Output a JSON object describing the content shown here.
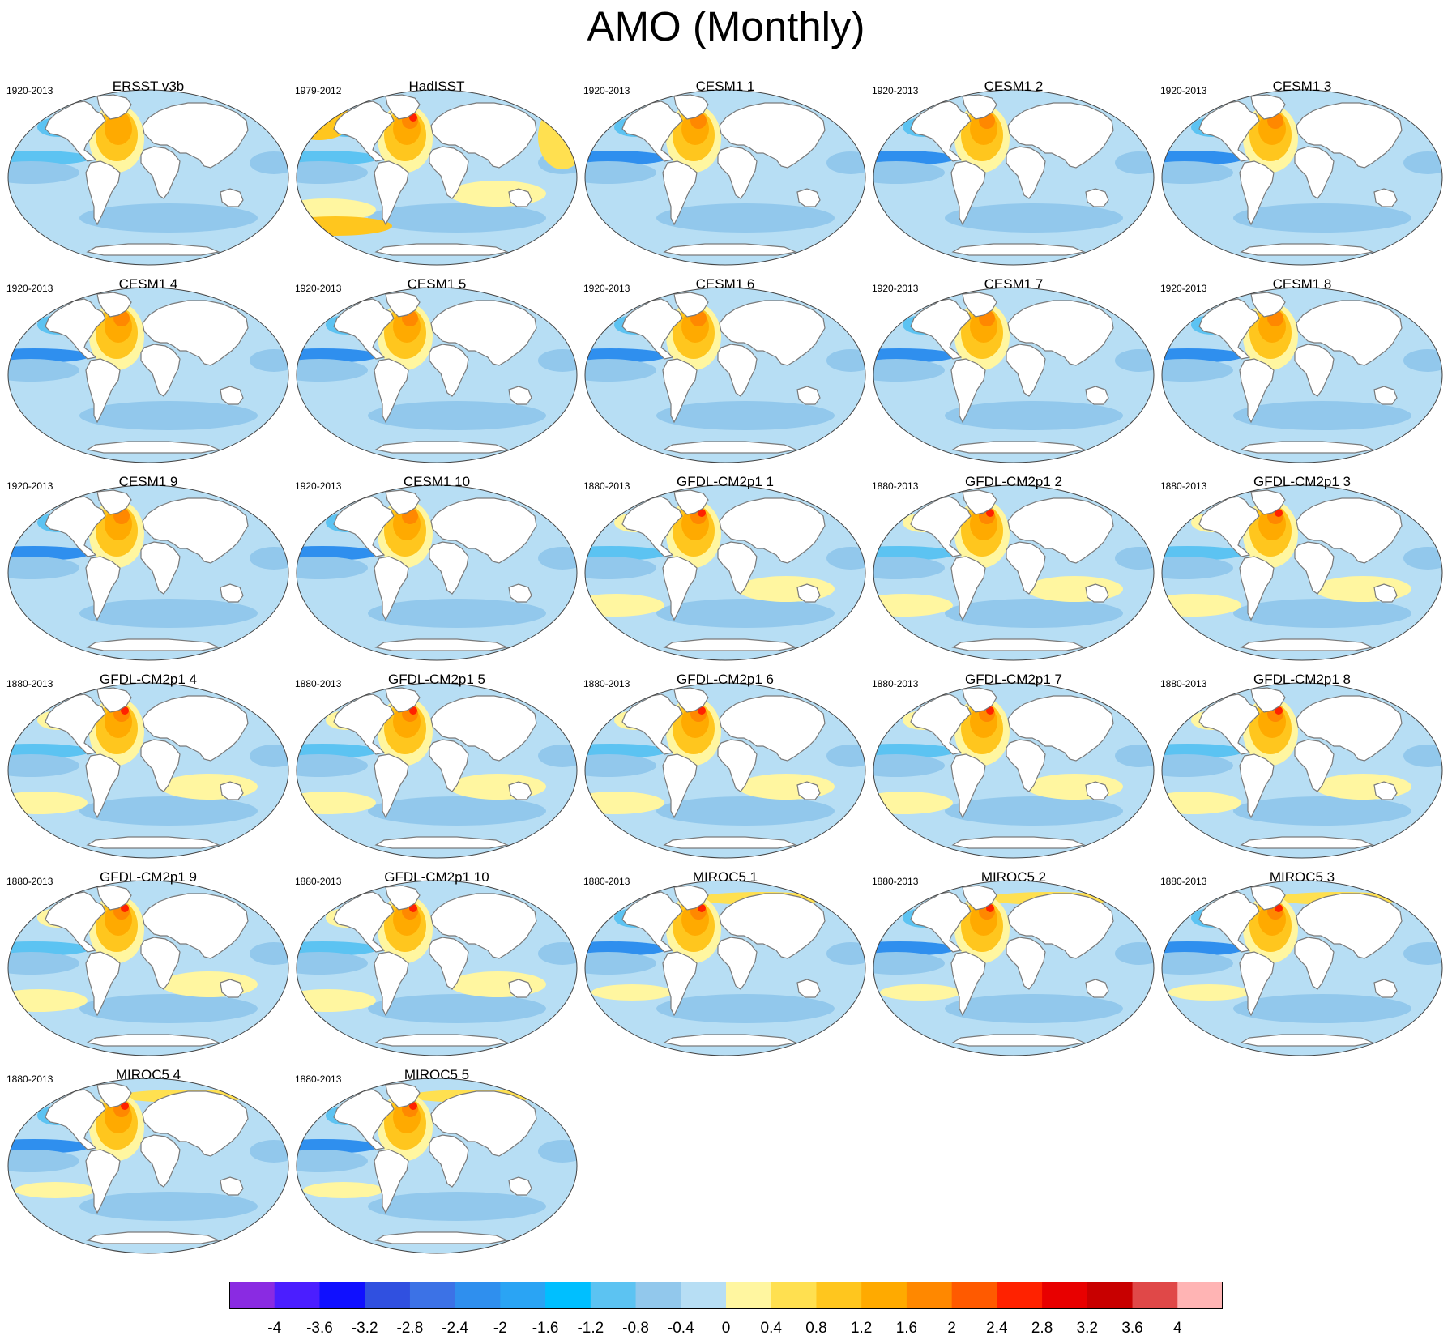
{
  "title": "AMO (Monthly)",
  "panels": [
    {
      "title": "ERSST v3b",
      "years": "1920-2013",
      "variant": "obs"
    },
    {
      "title": "HadISST",
      "years": "1979-2012",
      "variant": "had"
    },
    {
      "title": "CESM1 1",
      "years": "1920-2013",
      "variant": "cesm"
    },
    {
      "title": "CESM1 2",
      "years": "1920-2013",
      "variant": "cesm"
    },
    {
      "title": "CESM1 3",
      "years": "1920-2013",
      "variant": "cesm"
    },
    {
      "title": "CESM1 4",
      "years": "1920-2013",
      "variant": "cesm"
    },
    {
      "title": "CESM1 5",
      "years": "1920-2013",
      "variant": "cesm"
    },
    {
      "title": "CESM1 6",
      "years": "1920-2013",
      "variant": "cesm"
    },
    {
      "title": "CESM1 7",
      "years": "1920-2013",
      "variant": "cesm"
    },
    {
      "title": "CESM1 8",
      "years": "1920-2013",
      "variant": "cesm"
    },
    {
      "title": "CESM1 9",
      "years": "1920-2013",
      "variant": "cesm"
    },
    {
      "title": "CESM1 10",
      "years": "1920-2013",
      "variant": "cesm"
    },
    {
      "title": "GFDL-CM2p1 1",
      "years": "1880-2013",
      "variant": "gfdl"
    },
    {
      "title": "GFDL-CM2p1 2",
      "years": "1880-2013",
      "variant": "gfdl"
    },
    {
      "title": "GFDL-CM2p1 3",
      "years": "1880-2013",
      "variant": "gfdl"
    },
    {
      "title": "GFDL-CM2p1 4",
      "years": "1880-2013",
      "variant": "gfdl"
    },
    {
      "title": "GFDL-CM2p1 5",
      "years": "1880-2013",
      "variant": "gfdl"
    },
    {
      "title": "GFDL-CM2p1 6",
      "years": "1880-2013",
      "variant": "gfdl"
    },
    {
      "title": "GFDL-CM2p1 7",
      "years": "1880-2013",
      "variant": "gfdl"
    },
    {
      "title": "GFDL-CM2p1 8",
      "years": "1880-2013",
      "variant": "gfdl"
    },
    {
      "title": "GFDL-CM2p1 9",
      "years": "1880-2013",
      "variant": "gfdl"
    },
    {
      "title": "GFDL-CM2p1 10",
      "years": "1880-2013",
      "variant": "gfdl"
    },
    {
      "title": "MIROC5 1",
      "years": "1880-2013",
      "variant": "miroc"
    },
    {
      "title": "MIROC5 2",
      "years": "1880-2013",
      "variant": "miroc"
    },
    {
      "title": "MIROC5 3",
      "years": "1880-2013",
      "variant": "miroc"
    },
    {
      "title": "MIROC5 4",
      "years": "1880-2013",
      "variant": "miroc"
    },
    {
      "title": "MIROC5 5",
      "years": "1880-2013",
      "variant": "miroc"
    }
  ],
  "colorbar": {
    "colors": [
      "#8a2be2",
      "#4b1eff",
      "#1010ff",
      "#3050e0",
      "#3c72e6",
      "#2f8fee",
      "#2aa4f4",
      "#00bfff",
      "#5cc3f2",
      "#92c8ec",
      "#b7def4",
      "#fff6a0",
      "#ffe050",
      "#ffc61e",
      "#ffaa00",
      "#ff8800",
      "#ff5a00",
      "#ff2200",
      "#e80000",
      "#c80000",
      "#e04848",
      "#ffb4b4"
    ],
    "labels": [
      "-4",
      "-3.6",
      "-3.2",
      "-2.8",
      "-2.4",
      "-2",
      "-1.6",
      "-1.2",
      "-0.8",
      "-0.4",
      "0",
      "0.4",
      "0.8",
      "1.2",
      "1.6",
      "2",
      "2.4",
      "2.8",
      "3.2",
      "3.6",
      "4"
    ]
  }
}
